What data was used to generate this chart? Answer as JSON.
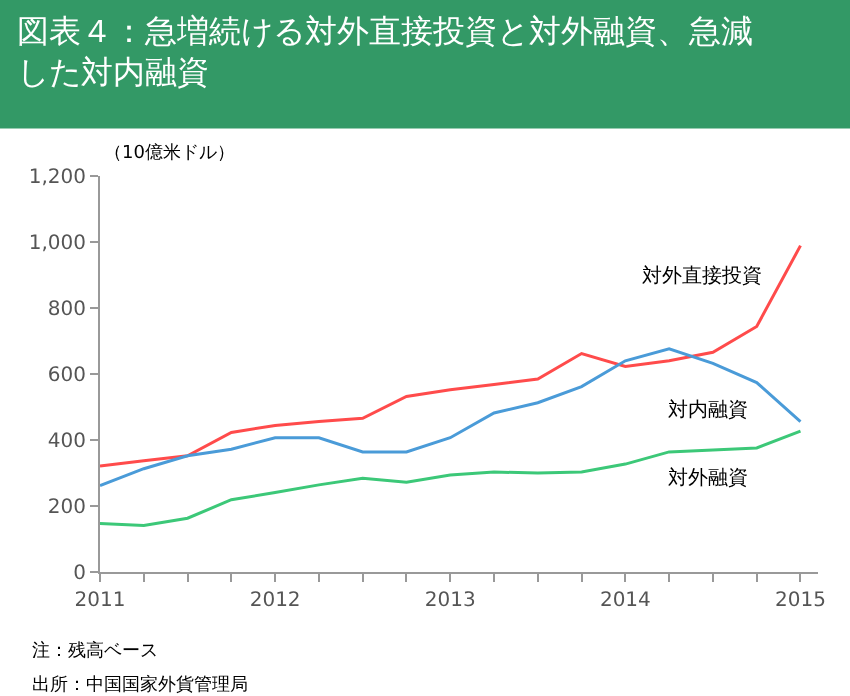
{
  "chart_data": {
    "type": "line",
    "title": "図表４：急増続ける対外直接投資と対外融資、急減した対内融資",
    "ylabel": "（10億米ドル）",
    "x": [
      2011,
      2011.25,
      2011.5,
      2011.75,
      2012,
      2012.25,
      2012.5,
      2012.75,
      2013,
      2013.25,
      2013.5,
      2013.75,
      2014,
      2014.25,
      2014.5,
      2014.75,
      2015
    ],
    "series": [
      {
        "name": "対外直接投資",
        "color": "#ff4b4b",
        "values": [
          321,
          337,
          352,
          423,
          444,
          456,
          466,
          532,
          552,
          568,
          585,
          662,
          623,
          640,
          666,
          744,
          989
        ]
      },
      {
        "name": "対内融資",
        "color": "#4a9bd8",
        "values": [
          262,
          313,
          352,
          372,
          407,
          407,
          364,
          364,
          407,
          482,
          513,
          562,
          640,
          676,
          632,
          574,
          456
        ]
      },
      {
        "name": "対外融資",
        "color": "#3cc878",
        "values": [
          147,
          141,
          163,
          219,
          241,
          264,
          284,
          272,
          294,
          303,
          300,
          303,
          327,
          364,
          370,
          376,
          427
        ]
      }
    ],
    "xlim": [
      2011,
      2015.1
    ],
    "xticks": [
      2011,
      {
        "value": 2011.25,
        "label": null
      },
      {
        "value": 2011.5,
        "label": null
      },
      {
        "value": 2011.75,
        "label": null
      },
      2012,
      {
        "value": 2012.25,
        "label": null
      },
      {
        "value": 2012.5,
        "label": null
      },
      {
        "value": 2012.75,
        "label": null
      },
      2013,
      {
        "value": 2013.25,
        "label": null
      },
      {
        "value": 2013.5,
        "label": null
      },
      {
        "value": 2013.75,
        "label": null
      },
      2014,
      {
        "value": 2014.25,
        "label": null
      },
      {
        "value": 2014.5,
        "label": null
      },
      {
        "value": 2014.75,
        "label": null
      },
      2015
    ],
    "ylim": [
      0,
      1200
    ],
    "yticks": [
      0,
      200,
      400,
      600,
      800,
      {
        "value": 1000,
        "label": "1,000"
      },
      {
        "value": 1200,
        "label": "1,200"
      }
    ],
    "legend": false,
    "marker": "none",
    "line_style": "solid",
    "annotations": [
      "注：残高ベース",
      "出所：中国国家外貨管理局"
    ]
  }
}
